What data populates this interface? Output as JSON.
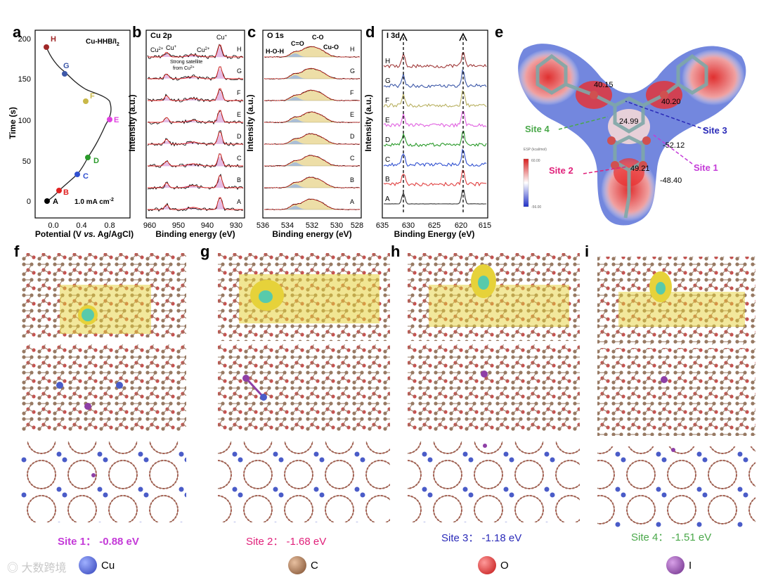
{
  "panel_labels": [
    "a",
    "b",
    "c",
    "d",
    "e",
    "f",
    "g",
    "h",
    "i"
  ],
  "panel_a": {
    "title": "Cu-HHB/I",
    "title_sub": "2",
    "current": "1.0 mA cm",
    "current_sup": "-2",
    "ylabel": "Time (s)",
    "xlabel_pre": "Potential (V ",
    "xlabel_vs": "vs.",
    "xlabel_post": " Ag/AgCl)",
    "x_ticks": [
      "0.0",
      "0.4",
      "0.8"
    ],
    "y_ticks": [
      "0",
      "50",
      "100",
      "150",
      "200"
    ]
  },
  "panel_b": {
    "title": "Cu 2p",
    "ylabel": "Intensity (a.u.)",
    "xlabel": "Binding energy (eV)",
    "x_ticks": [
      "960",
      "950",
      "940",
      "930"
    ],
    "peak_cu2_left": "Cu",
    "peak_cu2_left_sup": "2+",
    "peak_cu1_left": "Cu",
    "peak_cu1_left_sup": "+",
    "peak_cu2_right": "Cu",
    "peak_cu2_right_sup": "2+",
    "peak_cu1_right": "Cu",
    "peak_cu1_right_sup": "+",
    "satellite_line1": "Strong satellite",
    "satellite_line2": "from Cu",
    "satellite_sup": "2+"
  },
  "panel_c": {
    "title": "O 1s",
    "ylabel": "Intensity (a.u.)",
    "xlabel": "Binding energy (eV)",
    "x_ticks": [
      "536",
      "534",
      "532",
      "530",
      "528"
    ],
    "peak_labels": [
      "H-O-H",
      "C=O",
      "C-O",
      "Cu-O"
    ]
  },
  "panel_d": {
    "title": "I 3d",
    "ylabel": "Intensity (a.u.)",
    "xlabel": "Binding Energy (eV)",
    "x_ticks": [
      "635",
      "630",
      "625",
      "620",
      "615"
    ]
  },
  "curve_labels": [
    "A",
    "B",
    "C",
    "D",
    "E",
    "F",
    "G",
    "H"
  ],
  "panel_e": {
    "values": [
      "40.15",
      "40.20",
      "24.99",
      "-52.12",
      "49.21",
      "-48.40"
    ],
    "sites": [
      "Site 1",
      "Site 2",
      "Site 3",
      "Site 4"
    ],
    "colorbar_title": "ESP (kcal/mol)",
    "colorbar_max": "60.00",
    "colorbar_min": "-56.00"
  },
  "site_captions": [
    {
      "name": "Site 1：",
      "energy": "-0.88 eV"
    },
    {
      "name": "Site 2：",
      "energy": "-1.68 eV"
    },
    {
      "name": "Site 3：",
      "energy": "-1.18 eV"
    },
    {
      "name": "Site 4：",
      "energy": "-1.51 eV"
    }
  ],
  "legend": [
    "Cu",
    "C",
    "O",
    "I"
  ],
  "watermark": "大数跨境",
  "colors": {
    "A": "#000000",
    "B": "#e02020",
    "C": "#3050d0",
    "D": "#2a9a2a",
    "E": "#e040e0",
    "F": "#c9b848",
    "G": "#3d58a8",
    "H": "#a02828",
    "site1": "#c43ad8",
    "site2": "#e0207a",
    "site3": "#2a2ab8",
    "site4": "#4aa84a"
  }
}
